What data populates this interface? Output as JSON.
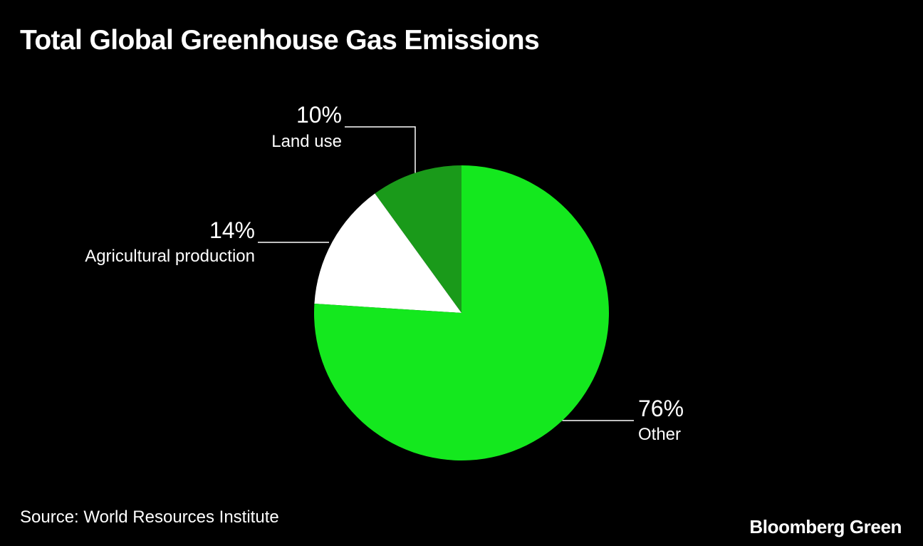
{
  "title": "Total Global Greenhouse Gas Emissions",
  "source": "Source: World Resources Institute",
  "brand": "Bloomberg Green",
  "chart_data": {
    "type": "pie",
    "title": "Total Global Greenhouse Gas Emissions",
    "start_angle": "12 o'clock",
    "direction": "counterclockwise",
    "slices": [
      {
        "label": "Land use",
        "value": 10,
        "display": "10%",
        "color": "#1a9a1a"
      },
      {
        "label": "Agricultural production",
        "value": 14,
        "display": "14%",
        "color": "#ffffff"
      },
      {
        "label": "Other",
        "value": 76,
        "display": "76%",
        "color": "#14e81e"
      }
    ]
  }
}
